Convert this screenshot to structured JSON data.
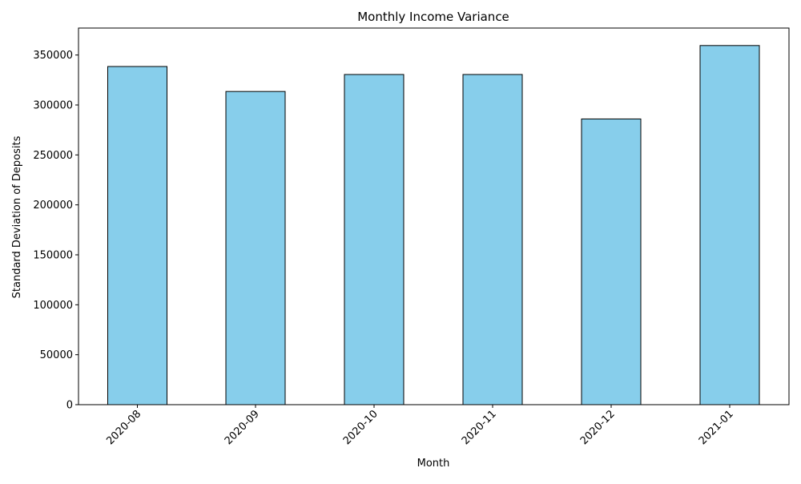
{
  "chart_data": {
    "type": "bar",
    "title": "Monthly Income Variance",
    "xlabel": "Month",
    "ylabel": "Standard Deviation of Deposits",
    "categories": [
      "2020-08",
      "2020-09",
      "2020-10",
      "2020-11",
      "2020-12",
      "2021-01"
    ],
    "values": [
      338500,
      313500,
      330500,
      330500,
      286000,
      359500
    ],
    "ylim": [
      0,
      377000
    ],
    "yticks": [
      0,
      50000,
      100000,
      150000,
      200000,
      250000,
      300000,
      350000
    ],
    "ytick_labels": [
      "0",
      "50000",
      "100000",
      "150000",
      "200000",
      "250000",
      "300000",
      "350000"
    ],
    "grid": false,
    "legend": "none",
    "bar_color": "#87CEEB",
    "bar_edge_color": "#000000",
    "xtick_rotation": 45
  }
}
